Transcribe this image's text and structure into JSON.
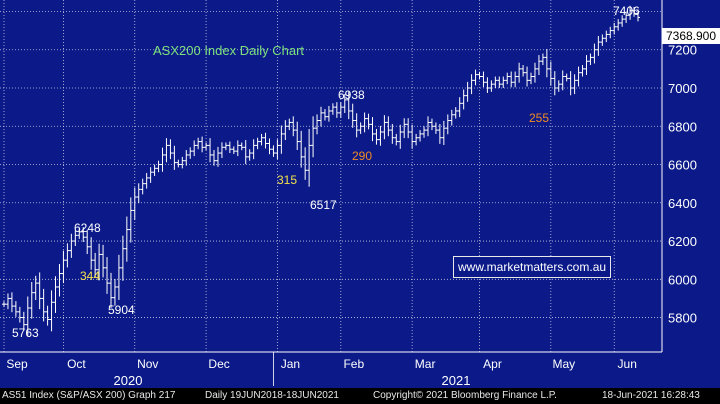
{
  "chart_data": {
    "type": "candlestick",
    "title": "ASX200 Index Daily Chart",
    "ylim": [
      5620,
      7460
    ],
    "y_ticks": [
      5800,
      6000,
      6200,
      6400,
      6600,
      6800,
      7000,
      7200
    ],
    "x_tick_labels": [
      "Sep",
      "Oct",
      "Nov",
      "Dec",
      "Jan",
      "Feb",
      "Mar",
      "Apr",
      "May",
      "Jun"
    ],
    "year_labels": [
      "2020",
      "2021"
    ],
    "last_price": "7368.900",
    "grid": true,
    "series": [
      {
        "values": [
          5870,
          5900,
          5860,
          5830,
          5800,
          5763,
          5850,
          5930,
          5980,
          5900,
          5830,
          5790,
          5880,
          5960,
          6030,
          6100,
          6150,
          6200,
          6230,
          6248,
          6220,
          6170,
          6100,
          6050,
          6130,
          6060,
          5980,
          5904,
          5960,
          6060,
          6160,
          6260,
          6360,
          6430,
          6470,
          6500,
          6530,
          6560,
          6580,
          6600,
          6650,
          6700,
          6660,
          6610,
          6600,
          6620,
          6650,
          6670,
          6700,
          6720,
          6690,
          6700,
          6650,
          6620,
          6660,
          6690,
          6700,
          6680,
          6670,
          6700,
          6690,
          6640,
          6660,
          6700,
          6720,
          6740,
          6710,
          6680,
          6660,
          6700,
          6760,
          6800,
          6820,
          6780,
          6720,
          6640,
          6570,
          6700,
          6790,
          6830,
          6870,
          6850,
          6880,
          6900,
          6870,
          6900,
          6938,
          6880,
          6830,
          6780,
          6800,
          6840,
          6810,
          6760,
          6730,
          6770,
          6820,
          6780,
          6740,
          6720,
          6770,
          6810,
          6770,
          6720,
          6740,
          6760,
          6780,
          6820,
          6800,
          6780,
          6740,
          6790,
          6830,
          6860,
          6880,
          6920,
          6960,
          7000,
          7040,
          7070,
          7060,
          7030,
          7000,
          7020,
          7040,
          7020,
          7040,
          7060,
          7030,
          7060,
          7100,
          7080,
          7040,
          7060,
          7100,
          7140,
          7160,
          7100,
          7050,
          7000,
          7020,
          7060,
          7050,
          7000,
          7040,
          7080,
          7100,
          7140,
          7160,
          7200,
          7240,
          7260,
          7280,
          7300,
          7320,
          7340,
          7360,
          7380,
          7406,
          7390,
          7368.9
        ]
      }
    ],
    "annotations": [
      {
        "text": "5763",
        "color": "white"
      },
      {
        "text": "6248",
        "color": "white"
      },
      {
        "text": "344",
        "color": "yellow"
      },
      {
        "text": "5904",
        "color": "white"
      },
      {
        "text": "315",
        "color": "yellow"
      },
      {
        "text": "6517",
        "color": "white"
      },
      {
        "text": "6938",
        "color": "white"
      },
      {
        "text": "290",
        "color": "orange"
      },
      {
        "text": "255",
        "color": "orange"
      },
      {
        "text": "7406",
        "color": "white"
      }
    ]
  },
  "watermark": "www.marketmatters.com.au",
  "footer": {
    "security": "AS51 Index (S&P/ASX 200) Graph 217",
    "period": "Daily 19JUN2018-18JUN2021",
    "copyright": "Copyright© 2021 Bloomberg Finance L.P.",
    "timestamp": "18-Jun-2021 16:28:43"
  },
  "colors": {
    "background": "#0b1a88",
    "grid": "#ffffff",
    "candle": "#ffffff",
    "title": "#7ee07e",
    "yellow_annotation": "#f3e14a",
    "orange_annotation": "#f08a24"
  }
}
